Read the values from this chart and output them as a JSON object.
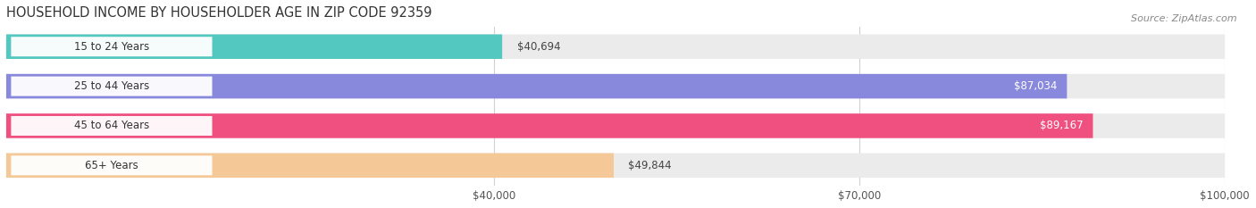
{
  "title": "HOUSEHOLD INCOME BY HOUSEHOLDER AGE IN ZIP CODE 92359",
  "source": "Source: ZipAtlas.com",
  "categories": [
    "15 to 24 Years",
    "25 to 44 Years",
    "45 to 64 Years",
    "65+ Years"
  ],
  "values": [
    40694,
    87034,
    89167,
    49844
  ],
  "bar_colors": [
    "#52c8c0",
    "#8888dd",
    "#f05080",
    "#f5c898"
  ],
  "bar_bg_color": "#ebebeb",
  "x_min": 0,
  "x_max": 100000,
  "x_ticks": [
    40000,
    70000,
    100000
  ],
  "x_tick_labels": [
    "$40,000",
    "$70,000",
    "$100,000"
  ],
  "value_labels": [
    "$40,694",
    "$87,034",
    "$89,167",
    "$49,844"
  ],
  "fig_width": 14.06,
  "fig_height": 2.33,
  "background_color": "#ffffff",
  "bar_height": 0.62,
  "label_bg_color": "#ffffff",
  "grid_color": "#d0d0d0"
}
